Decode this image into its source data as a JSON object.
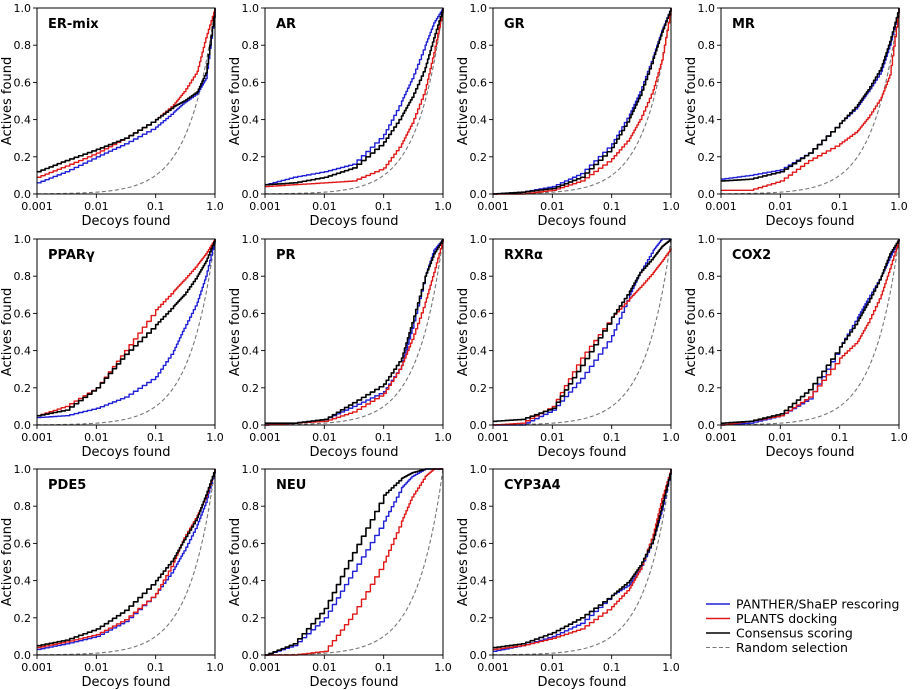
{
  "chart_data": {
    "type": "line",
    "xlabel": "Decoys found",
    "ylabel": "Actives found",
    "xscale": "log",
    "xlim": [
      0.001,
      1.0
    ],
    "ylim": [
      0.0,
      1.0
    ],
    "xtick_labels": [
      "0.001",
      "0.01",
      "0.1",
      "1.0"
    ],
    "ytick_labels": [
      "0.0",
      "0.2",
      "0.4",
      "0.6",
      "0.8",
      "1.0"
    ],
    "x": [
      0.001,
      0.003,
      0.01,
      0.03,
      0.1,
      0.2,
      0.3,
      0.5,
      0.7,
      1.0
    ],
    "colors": {
      "panther": "#1f1fd6",
      "plants": "#e01818",
      "consensus": "#000000",
      "random": "#777777"
    },
    "legend": {
      "position": "bottom-right",
      "entries": [
        "PANTHER/ShaEP rescoring",
        "PLANTS docking",
        "Consensus scoring",
        "Random selection"
      ]
    },
    "panels": [
      {
        "title": "ER-mix",
        "series": [
          {
            "name": "PANTHER/ShaEP rescoring",
            "values": [
              0.06,
              0.12,
              0.2,
              0.27,
              0.36,
              0.44,
              0.49,
              0.54,
              0.62,
              1.0
            ]
          },
          {
            "name": "PLANTS docking",
            "values": [
              0.09,
              0.15,
              0.22,
              0.3,
              0.4,
              0.48,
              0.55,
              0.66,
              0.84,
              1.0
            ]
          },
          {
            "name": "Consensus scoring",
            "values": [
              0.12,
              0.18,
              0.24,
              0.3,
              0.4,
              0.47,
              0.5,
              0.55,
              0.65,
              1.0
            ]
          }
        ]
      },
      {
        "title": "AR",
        "series": [
          {
            "name": "PANTHER/ShaEP rescoring",
            "values": [
              0.05,
              0.09,
              0.12,
              0.16,
              0.32,
              0.5,
              0.62,
              0.8,
              0.92,
              1.0
            ]
          },
          {
            "name": "PLANTS docking",
            "values": [
              0.04,
              0.05,
              0.06,
              0.07,
              0.14,
              0.27,
              0.38,
              0.56,
              0.76,
              1.0
            ]
          },
          {
            "name": "Consensus scoring",
            "values": [
              0.05,
              0.06,
              0.09,
              0.14,
              0.28,
              0.42,
              0.52,
              0.68,
              0.84,
              1.0
            ]
          }
        ]
      },
      {
        "title": "GR",
        "series": [
          {
            "name": "PANTHER/ShaEP rescoring",
            "values": [
              0.0,
              0.01,
              0.04,
              0.11,
              0.27,
              0.43,
              0.55,
              0.74,
              0.88,
              1.0
            ]
          },
          {
            "name": "PLANTS docking",
            "values": [
              0.0,
              0.0,
              0.02,
              0.07,
              0.19,
              0.3,
              0.4,
              0.56,
              0.72,
              1.0
            ]
          },
          {
            "name": "Consensus scoring",
            "values": [
              0.0,
              0.01,
              0.03,
              0.09,
              0.25,
              0.41,
              0.53,
              0.73,
              0.87,
              1.0
            ]
          }
        ]
      },
      {
        "title": "MR",
        "series": [
          {
            "name": "PANTHER/ShaEP rescoring",
            "values": [
              0.08,
              0.1,
              0.13,
              0.22,
              0.38,
              0.47,
              0.55,
              0.66,
              0.8,
              1.0
            ]
          },
          {
            "name": "PLANTS docking",
            "values": [
              0.02,
              0.02,
              0.07,
              0.18,
              0.27,
              0.34,
              0.41,
              0.52,
              0.64,
              1.0
            ]
          },
          {
            "name": "Consensus scoring",
            "values": [
              0.07,
              0.08,
              0.12,
              0.22,
              0.38,
              0.48,
              0.56,
              0.68,
              0.82,
              1.0
            ]
          }
        ]
      },
      {
        "title": "PPARγ",
        "series": [
          {
            "name": "PANTHER/ShaEP rescoring",
            "values": [
              0.04,
              0.05,
              0.09,
              0.15,
              0.26,
              0.4,
              0.52,
              0.66,
              0.8,
              1.0
            ]
          },
          {
            "name": "PLANTS docking",
            "values": [
              0.05,
              0.1,
              0.2,
              0.4,
              0.62,
              0.72,
              0.78,
              0.86,
              0.92,
              1.0
            ]
          },
          {
            "name": "Consensus scoring",
            "values": [
              0.05,
              0.08,
              0.2,
              0.38,
              0.54,
              0.64,
              0.7,
              0.8,
              0.88,
              1.0
            ]
          }
        ]
      },
      {
        "title": "PR",
        "series": [
          {
            "name": "PANTHER/ShaEP rescoring",
            "values": [
              0.0,
              0.01,
              0.03,
              0.1,
              0.18,
              0.32,
              0.52,
              0.8,
              0.94,
              1.0
            ]
          },
          {
            "name": "PLANTS docking",
            "values": [
              0.0,
              0.01,
              0.02,
              0.07,
              0.17,
              0.32,
              0.46,
              0.66,
              0.82,
              1.0
            ]
          },
          {
            "name": "Consensus scoring",
            "values": [
              0.01,
              0.01,
              0.03,
              0.12,
              0.22,
              0.36,
              0.55,
              0.8,
              0.92,
              1.0
            ]
          }
        ]
      },
      {
        "title": "RXRα",
        "series": [
          {
            "name": "PANTHER/ShaEP rescoring",
            "values": [
              0.0,
              0.0,
              0.08,
              0.25,
              0.48,
              0.7,
              0.82,
              0.94,
              1.0,
              1.0
            ]
          },
          {
            "name": "PLANTS docking",
            "values": [
              0.0,
              0.01,
              0.1,
              0.36,
              0.58,
              0.68,
              0.74,
              0.82,
              0.88,
              0.95
            ]
          },
          {
            "name": "Consensus scoring",
            "values": [
              0.02,
              0.03,
              0.09,
              0.32,
              0.58,
              0.72,
              0.82,
              0.9,
              0.96,
              1.0
            ]
          }
        ]
      },
      {
        "title": "COX2",
        "series": [
          {
            "name": "PANTHER/ShaEP rescoring",
            "values": [
              0.0,
              0.01,
              0.05,
              0.14,
              0.42,
              0.58,
              0.68,
              0.8,
              0.9,
              1.0
            ]
          },
          {
            "name": "PLANTS docking",
            "values": [
              0.0,
              0.02,
              0.05,
              0.15,
              0.36,
              0.45,
              0.55,
              0.7,
              0.84,
              1.0
            ]
          },
          {
            "name": "Consensus scoring",
            "values": [
              0.01,
              0.02,
              0.06,
              0.19,
              0.42,
              0.56,
              0.66,
              0.8,
              0.92,
              1.0
            ]
          }
        ]
      },
      {
        "title": "PDE5",
        "series": [
          {
            "name": "PANTHER/ShaEP rescoring",
            "values": [
              0.03,
              0.06,
              0.1,
              0.18,
              0.33,
              0.46,
              0.56,
              0.7,
              0.82,
              1.0
            ]
          },
          {
            "name": "PLANTS docking",
            "values": [
              0.04,
              0.07,
              0.11,
              0.19,
              0.33,
              0.5,
              0.63,
              0.75,
              0.85,
              1.0
            ]
          },
          {
            "name": "Consensus scoring",
            "values": [
              0.05,
              0.08,
              0.14,
              0.24,
              0.4,
              0.52,
              0.62,
              0.74,
              0.86,
              1.0
            ]
          }
        ]
      },
      {
        "title": "NEU",
        "series": [
          {
            "name": "PANTHER/ShaEP rescoring",
            "values": [
              0.0,
              0.05,
              0.2,
              0.45,
              0.72,
              0.9,
              0.96,
              1.0,
              1.0,
              1.0
            ]
          },
          {
            "name": "PLANTS docking",
            "values": [
              0.0,
              0.0,
              0.02,
              0.22,
              0.5,
              0.72,
              0.85,
              0.96,
              1.0,
              1.0
            ]
          },
          {
            "name": "Consensus scoring",
            "values": [
              0.0,
              0.06,
              0.25,
              0.55,
              0.86,
              0.95,
              0.98,
              1.0,
              1.0,
              1.0
            ]
          }
        ]
      },
      {
        "title": "CYP3A4",
        "series": [
          {
            "name": "PANTHER/ShaEP rescoring",
            "values": [
              0.02,
              0.05,
              0.1,
              0.17,
              0.32,
              0.38,
              0.46,
              0.62,
              0.78,
              1.0
            ]
          },
          {
            "name": "PLANTS docking",
            "values": [
              0.03,
              0.05,
              0.09,
              0.14,
              0.26,
              0.36,
              0.46,
              0.65,
              0.84,
              1.0
            ]
          },
          {
            "name": "Consensus scoring",
            "values": [
              0.04,
              0.06,
              0.12,
              0.2,
              0.32,
              0.4,
              0.48,
              0.62,
              0.8,
              1.0
            ]
          }
        ]
      }
    ]
  }
}
